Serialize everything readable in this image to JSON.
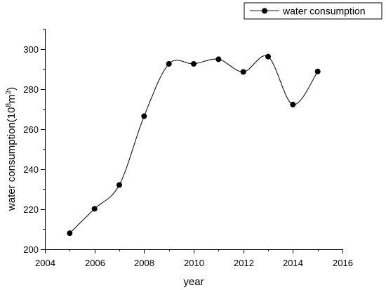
{
  "chart_data": {
    "type": "line",
    "xlabel": "year",
    "ylabel": {
      "prefix": "water consumption(10",
      "sup1": "8",
      "mid": "m",
      "sup2": "3",
      "suffix": ")"
    },
    "xlim": [
      2004,
      2016
    ],
    "ylim": [
      200,
      310
    ],
    "xticks": [
      2004,
      2006,
      2008,
      2010,
      2012,
      2014,
      2016
    ],
    "yticks": [
      200,
      220,
      240,
      260,
      280,
      300
    ],
    "legend": "top-right",
    "grid": false,
    "smooth": true,
    "series": [
      {
        "name": "water consumption",
        "x": [
          2005,
          2006,
          2007,
          2008,
          2009,
          2010,
          2011,
          2012,
          2013,
          2014,
          2015
        ],
        "y": [
          208.0,
          220.2,
          232.1,
          266.4,
          292.5,
          292.5,
          294.8,
          288.5,
          296.1,
          272.2,
          288.7
        ]
      }
    ]
  }
}
